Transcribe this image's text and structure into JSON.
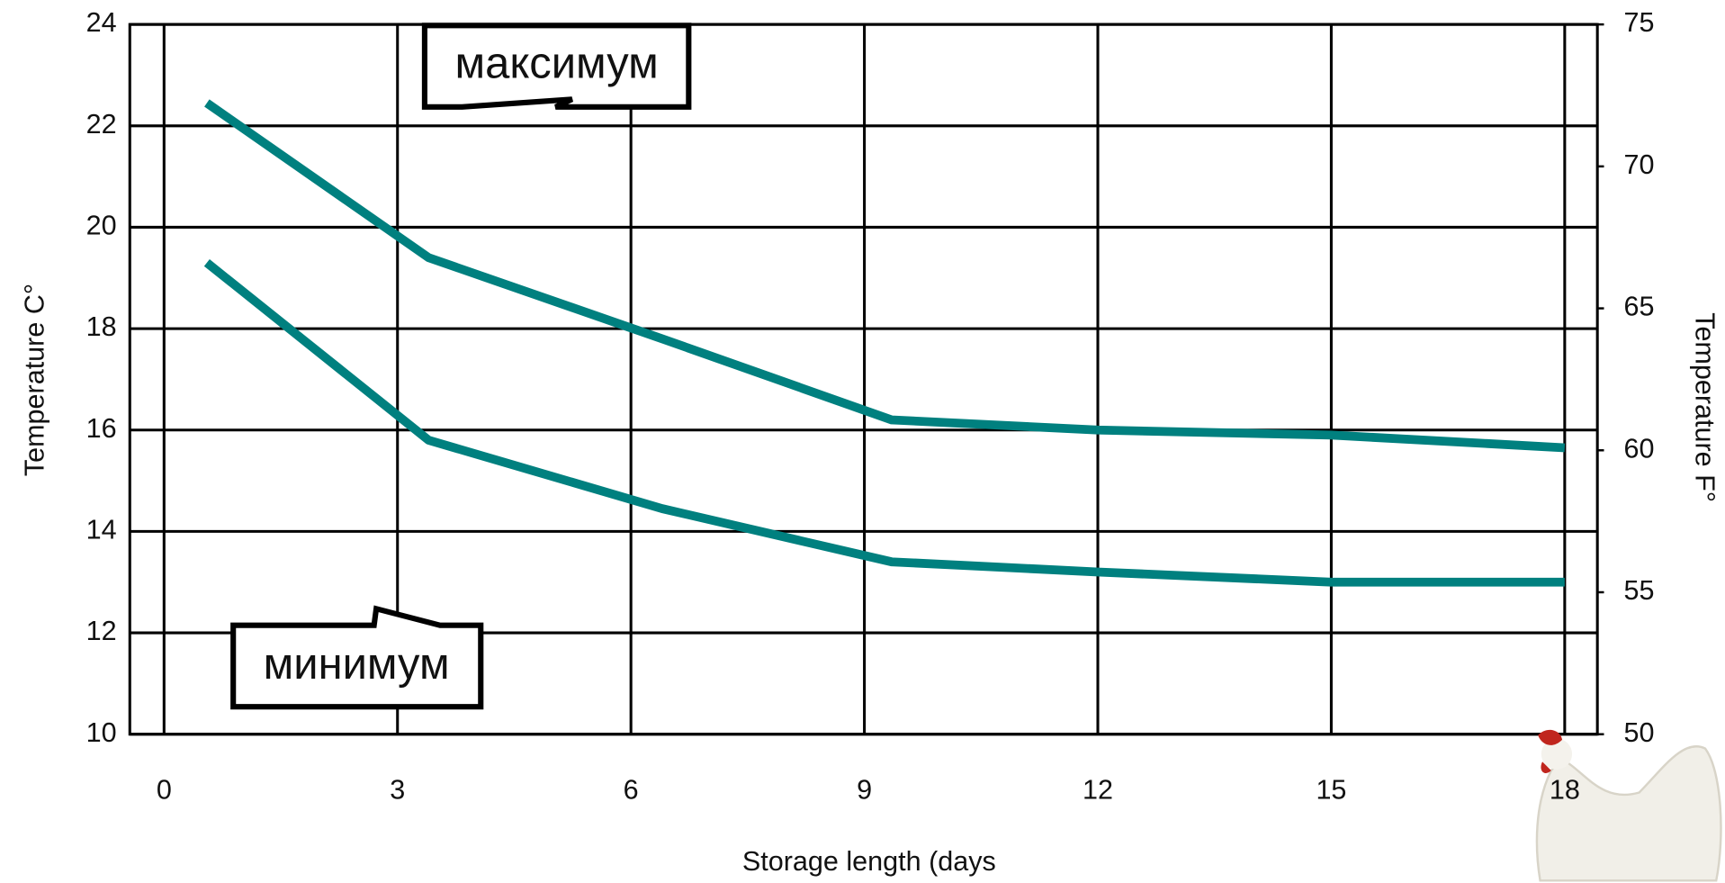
{
  "chart_data": {
    "type": "line",
    "y_label": "Temperature C°",
    "y2_label": "Temperature F°",
    "x_label": "Storage length (days",
    "annotations": [
      "максимум",
      "минимум"
    ],
    "x": [
      0.55,
      3.4,
      6.4,
      9.35,
      12,
      15,
      18
    ],
    "series": [
      {
        "name": "максимум",
        "color": "#00807f",
        "values": [
          22.45,
          19.4,
          17.8,
          16.2,
          16.0,
          15.9,
          15.65
        ]
      },
      {
        "name": "минимум",
        "color": "#00807f",
        "values": [
          19.3,
          15.8,
          14.45,
          13.4,
          13.2,
          13.0,
          13.0
        ]
      }
    ],
    "xlim": [
      -0.44,
      18.42
    ],
    "xticks": [
      0,
      3,
      6,
      9,
      12,
      15,
      18
    ],
    "ylim": [
      10,
      24
    ],
    "yticks": [
      10,
      12,
      14,
      16,
      18,
      20,
      22,
      24
    ],
    "y2lim": [
      50,
      75
    ],
    "y2ticks": [
      50,
      55,
      60,
      65,
      70,
      75
    ],
    "grid": true
  }
}
